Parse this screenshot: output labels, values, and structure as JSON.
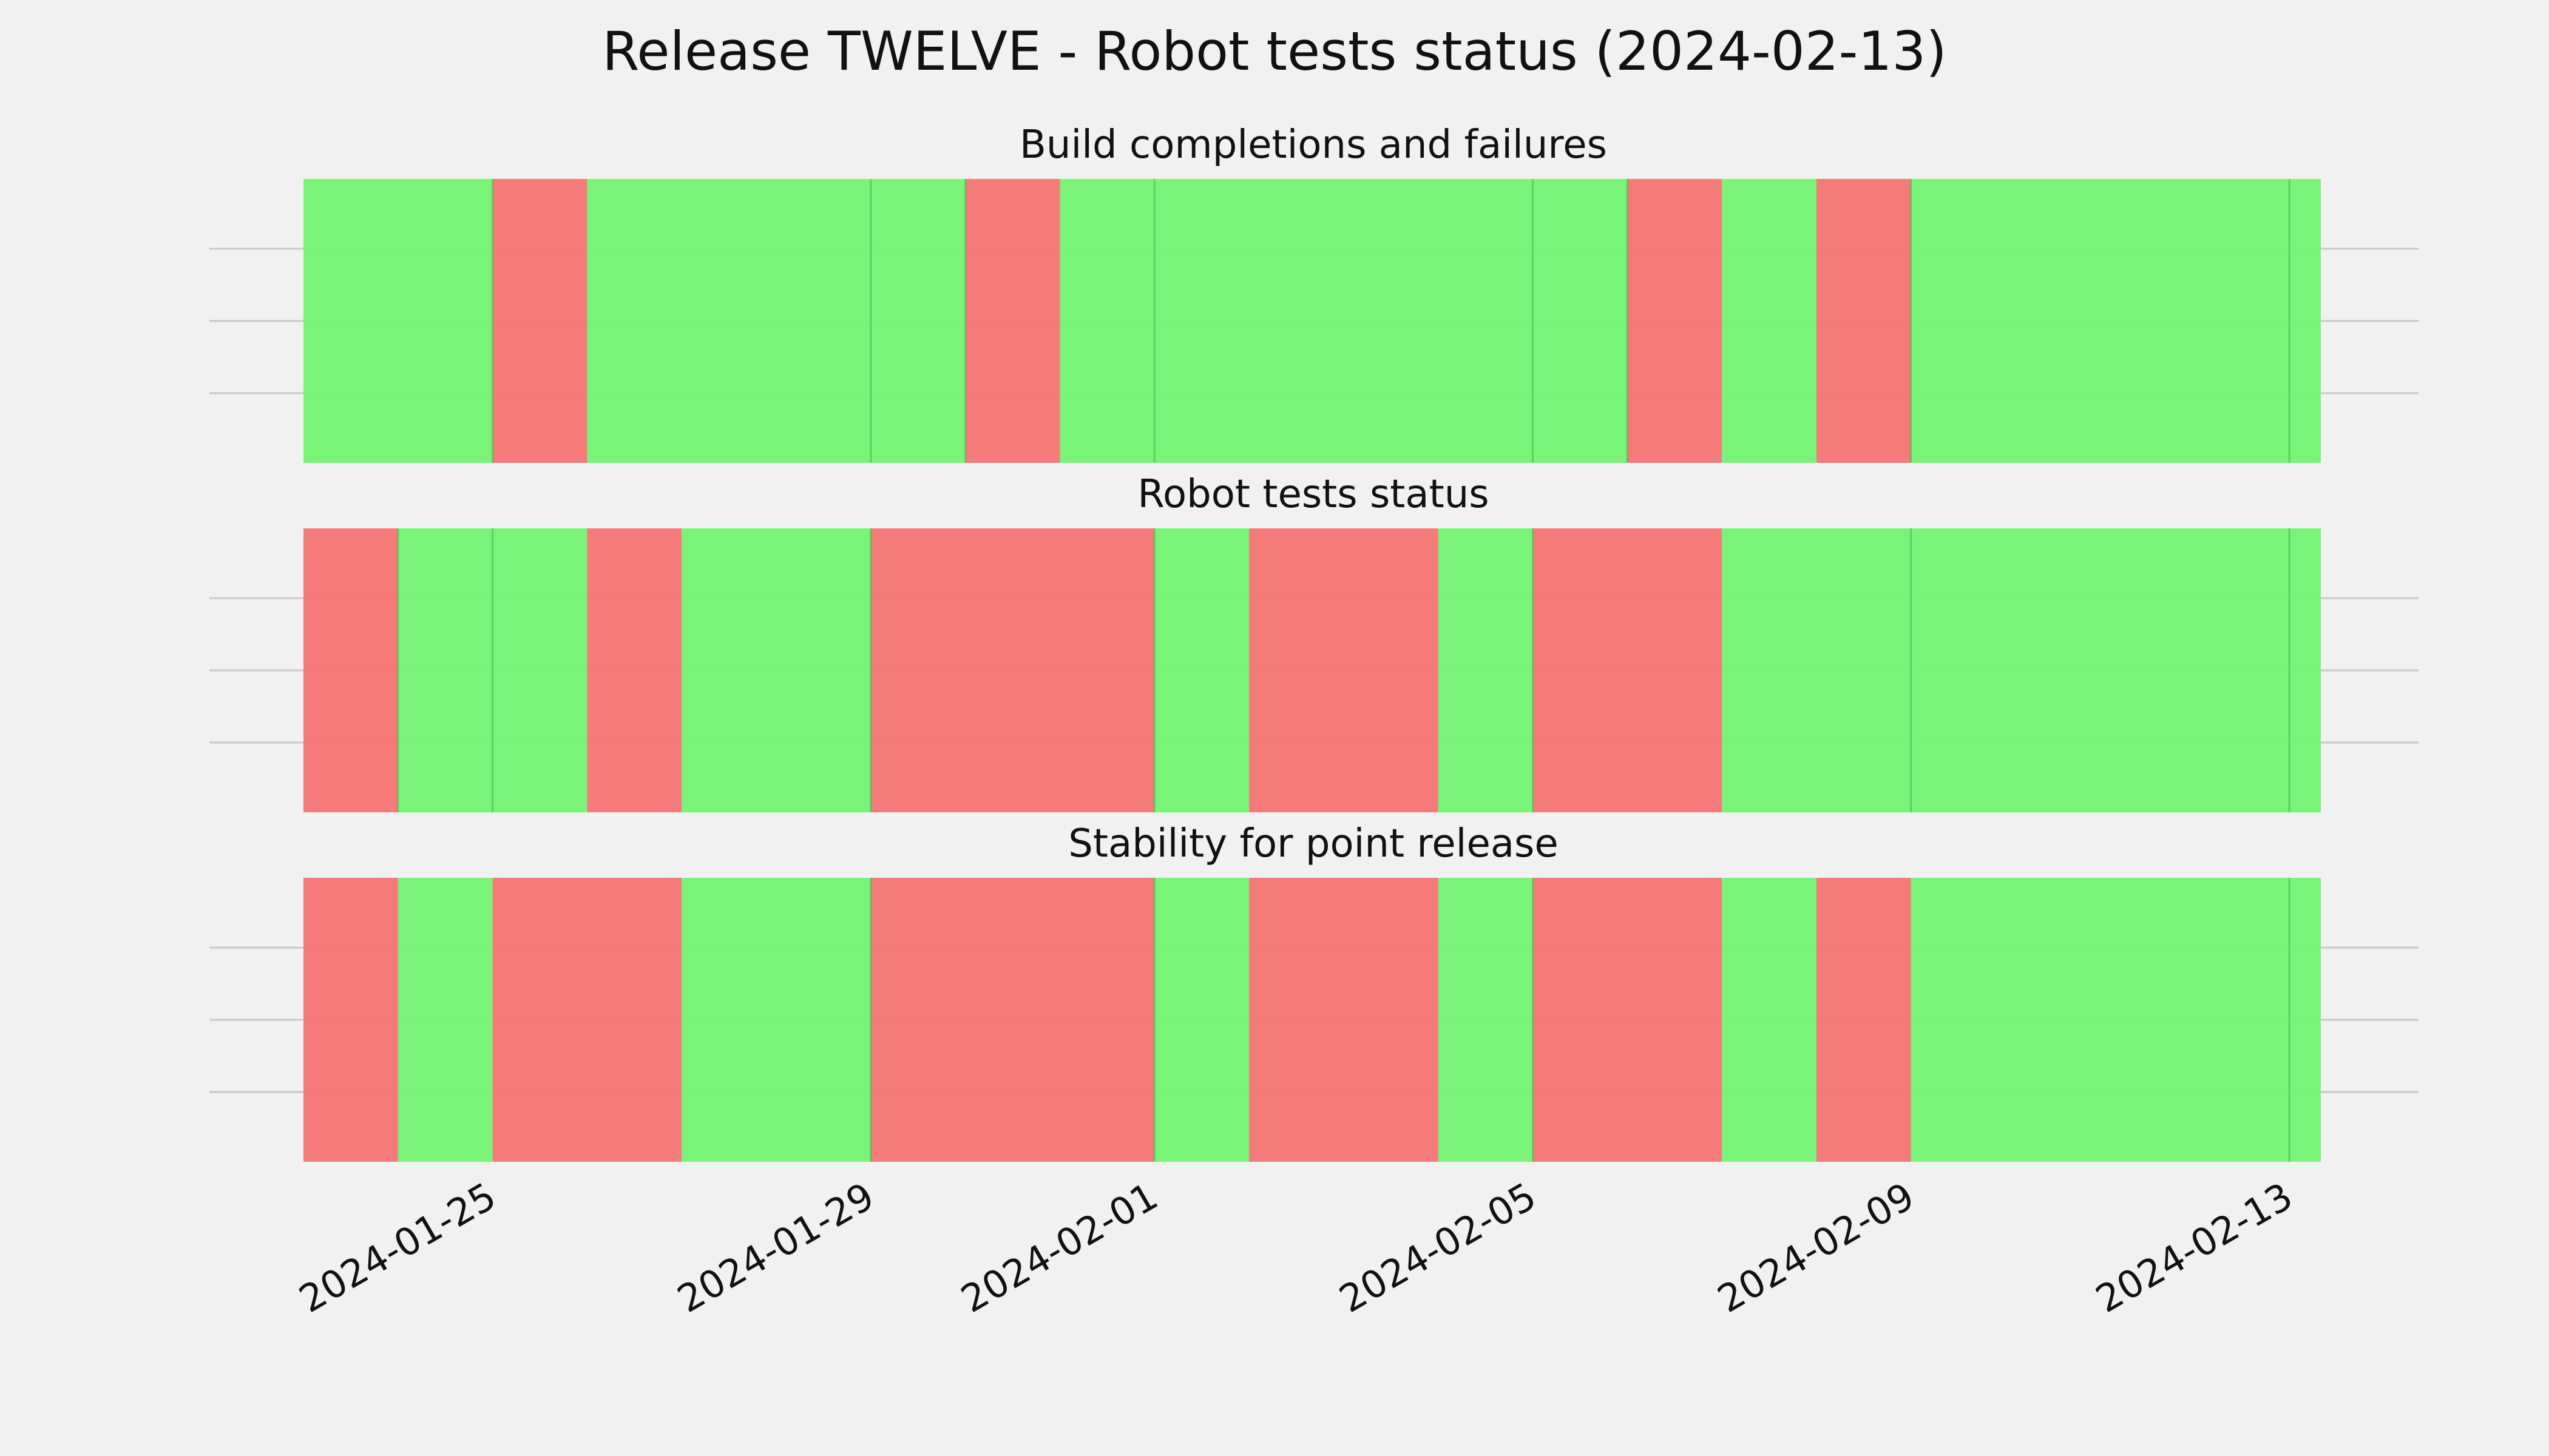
{
  "title": "Release TWELVE - Robot tests status (2024-02-13)",
  "colors": {
    "success": "#74f474",
    "failure": "#f57575",
    "background": "#f1f1f1",
    "grid": "#c9c9c9"
  },
  "chart_data": {
    "type": "timeline",
    "x_ticks": [
      "2024-01-25",
      "2024-01-29",
      "2024-02-01",
      "2024-02-05",
      "2024-02-09",
      "2024-02-13"
    ],
    "xlim": [
      "2024-01-23",
      "2024-02-13T08:00"
    ],
    "grid": true,
    "panels": [
      {
        "title": "Build completions and failures",
        "segments": [
          {
            "start": "2024-01-23",
            "end": "2024-01-25",
            "status": "success"
          },
          {
            "start": "2024-01-25",
            "end": "2024-01-26",
            "status": "failure"
          },
          {
            "start": "2024-01-26",
            "end": "2024-01-30",
            "status": "success"
          },
          {
            "start": "2024-01-30",
            "end": "2024-01-31",
            "status": "failure"
          },
          {
            "start": "2024-01-31",
            "end": "2024-02-06",
            "status": "success"
          },
          {
            "start": "2024-02-06",
            "end": "2024-02-07",
            "status": "failure"
          },
          {
            "start": "2024-02-07",
            "end": "2024-02-08",
            "status": "success"
          },
          {
            "start": "2024-02-08",
            "end": "2024-02-09",
            "status": "failure"
          },
          {
            "start": "2024-02-09",
            "end": "2024-02-13T08:00",
            "status": "success"
          }
        ],
        "run_dates": [
          "2024-01-25",
          "2024-01-29",
          "2024-01-30",
          "2024-02-01",
          "2024-02-05",
          "2024-02-06",
          "2024-02-09",
          "2024-02-13"
        ]
      },
      {
        "title": "Robot tests status",
        "segments": [
          {
            "start": "2024-01-23",
            "end": "2024-01-24",
            "status": "failure"
          },
          {
            "start": "2024-01-24",
            "end": "2024-01-26",
            "status": "success"
          },
          {
            "start": "2024-01-26",
            "end": "2024-01-27",
            "status": "failure"
          },
          {
            "start": "2024-01-27",
            "end": "2024-01-29",
            "status": "success"
          },
          {
            "start": "2024-01-29",
            "end": "2024-02-01",
            "status": "failure"
          },
          {
            "start": "2024-02-01",
            "end": "2024-02-02",
            "status": "success"
          },
          {
            "start": "2024-02-02",
            "end": "2024-02-04",
            "status": "failure"
          },
          {
            "start": "2024-02-04",
            "end": "2024-02-05",
            "status": "success"
          },
          {
            "start": "2024-02-05",
            "end": "2024-02-07",
            "status": "failure"
          },
          {
            "start": "2024-02-07",
            "end": "2024-02-13T08:00",
            "status": "success"
          }
        ],
        "run_dates": [
          "2024-01-24",
          "2024-01-25",
          "2024-01-29",
          "2024-02-01",
          "2024-02-05",
          "2024-02-09",
          "2024-02-13"
        ]
      },
      {
        "title": "Stability for point release",
        "segments": [
          {
            "start": "2024-01-23",
            "end": "2024-01-24",
            "status": "failure"
          },
          {
            "start": "2024-01-24",
            "end": "2024-01-25",
            "status": "success"
          },
          {
            "start": "2024-01-25",
            "end": "2024-01-27",
            "status": "failure"
          },
          {
            "start": "2024-01-27",
            "end": "2024-01-29",
            "status": "success"
          },
          {
            "start": "2024-01-29",
            "end": "2024-02-01",
            "status": "failure"
          },
          {
            "start": "2024-02-01",
            "end": "2024-02-02",
            "status": "success"
          },
          {
            "start": "2024-02-02",
            "end": "2024-02-04",
            "status": "failure"
          },
          {
            "start": "2024-02-04",
            "end": "2024-02-05",
            "status": "success"
          },
          {
            "start": "2024-02-05",
            "end": "2024-02-07",
            "status": "failure"
          },
          {
            "start": "2024-02-07",
            "end": "2024-02-08",
            "status": "success"
          },
          {
            "start": "2024-02-08",
            "end": "2024-02-09",
            "status": "failure"
          },
          {
            "start": "2024-02-09",
            "end": "2024-02-13T08:00",
            "status": "success"
          }
        ],
        "run_dates": [
          "2024-01-29",
          "2024-02-01",
          "2024-02-05",
          "2024-02-13"
        ]
      }
    ]
  }
}
